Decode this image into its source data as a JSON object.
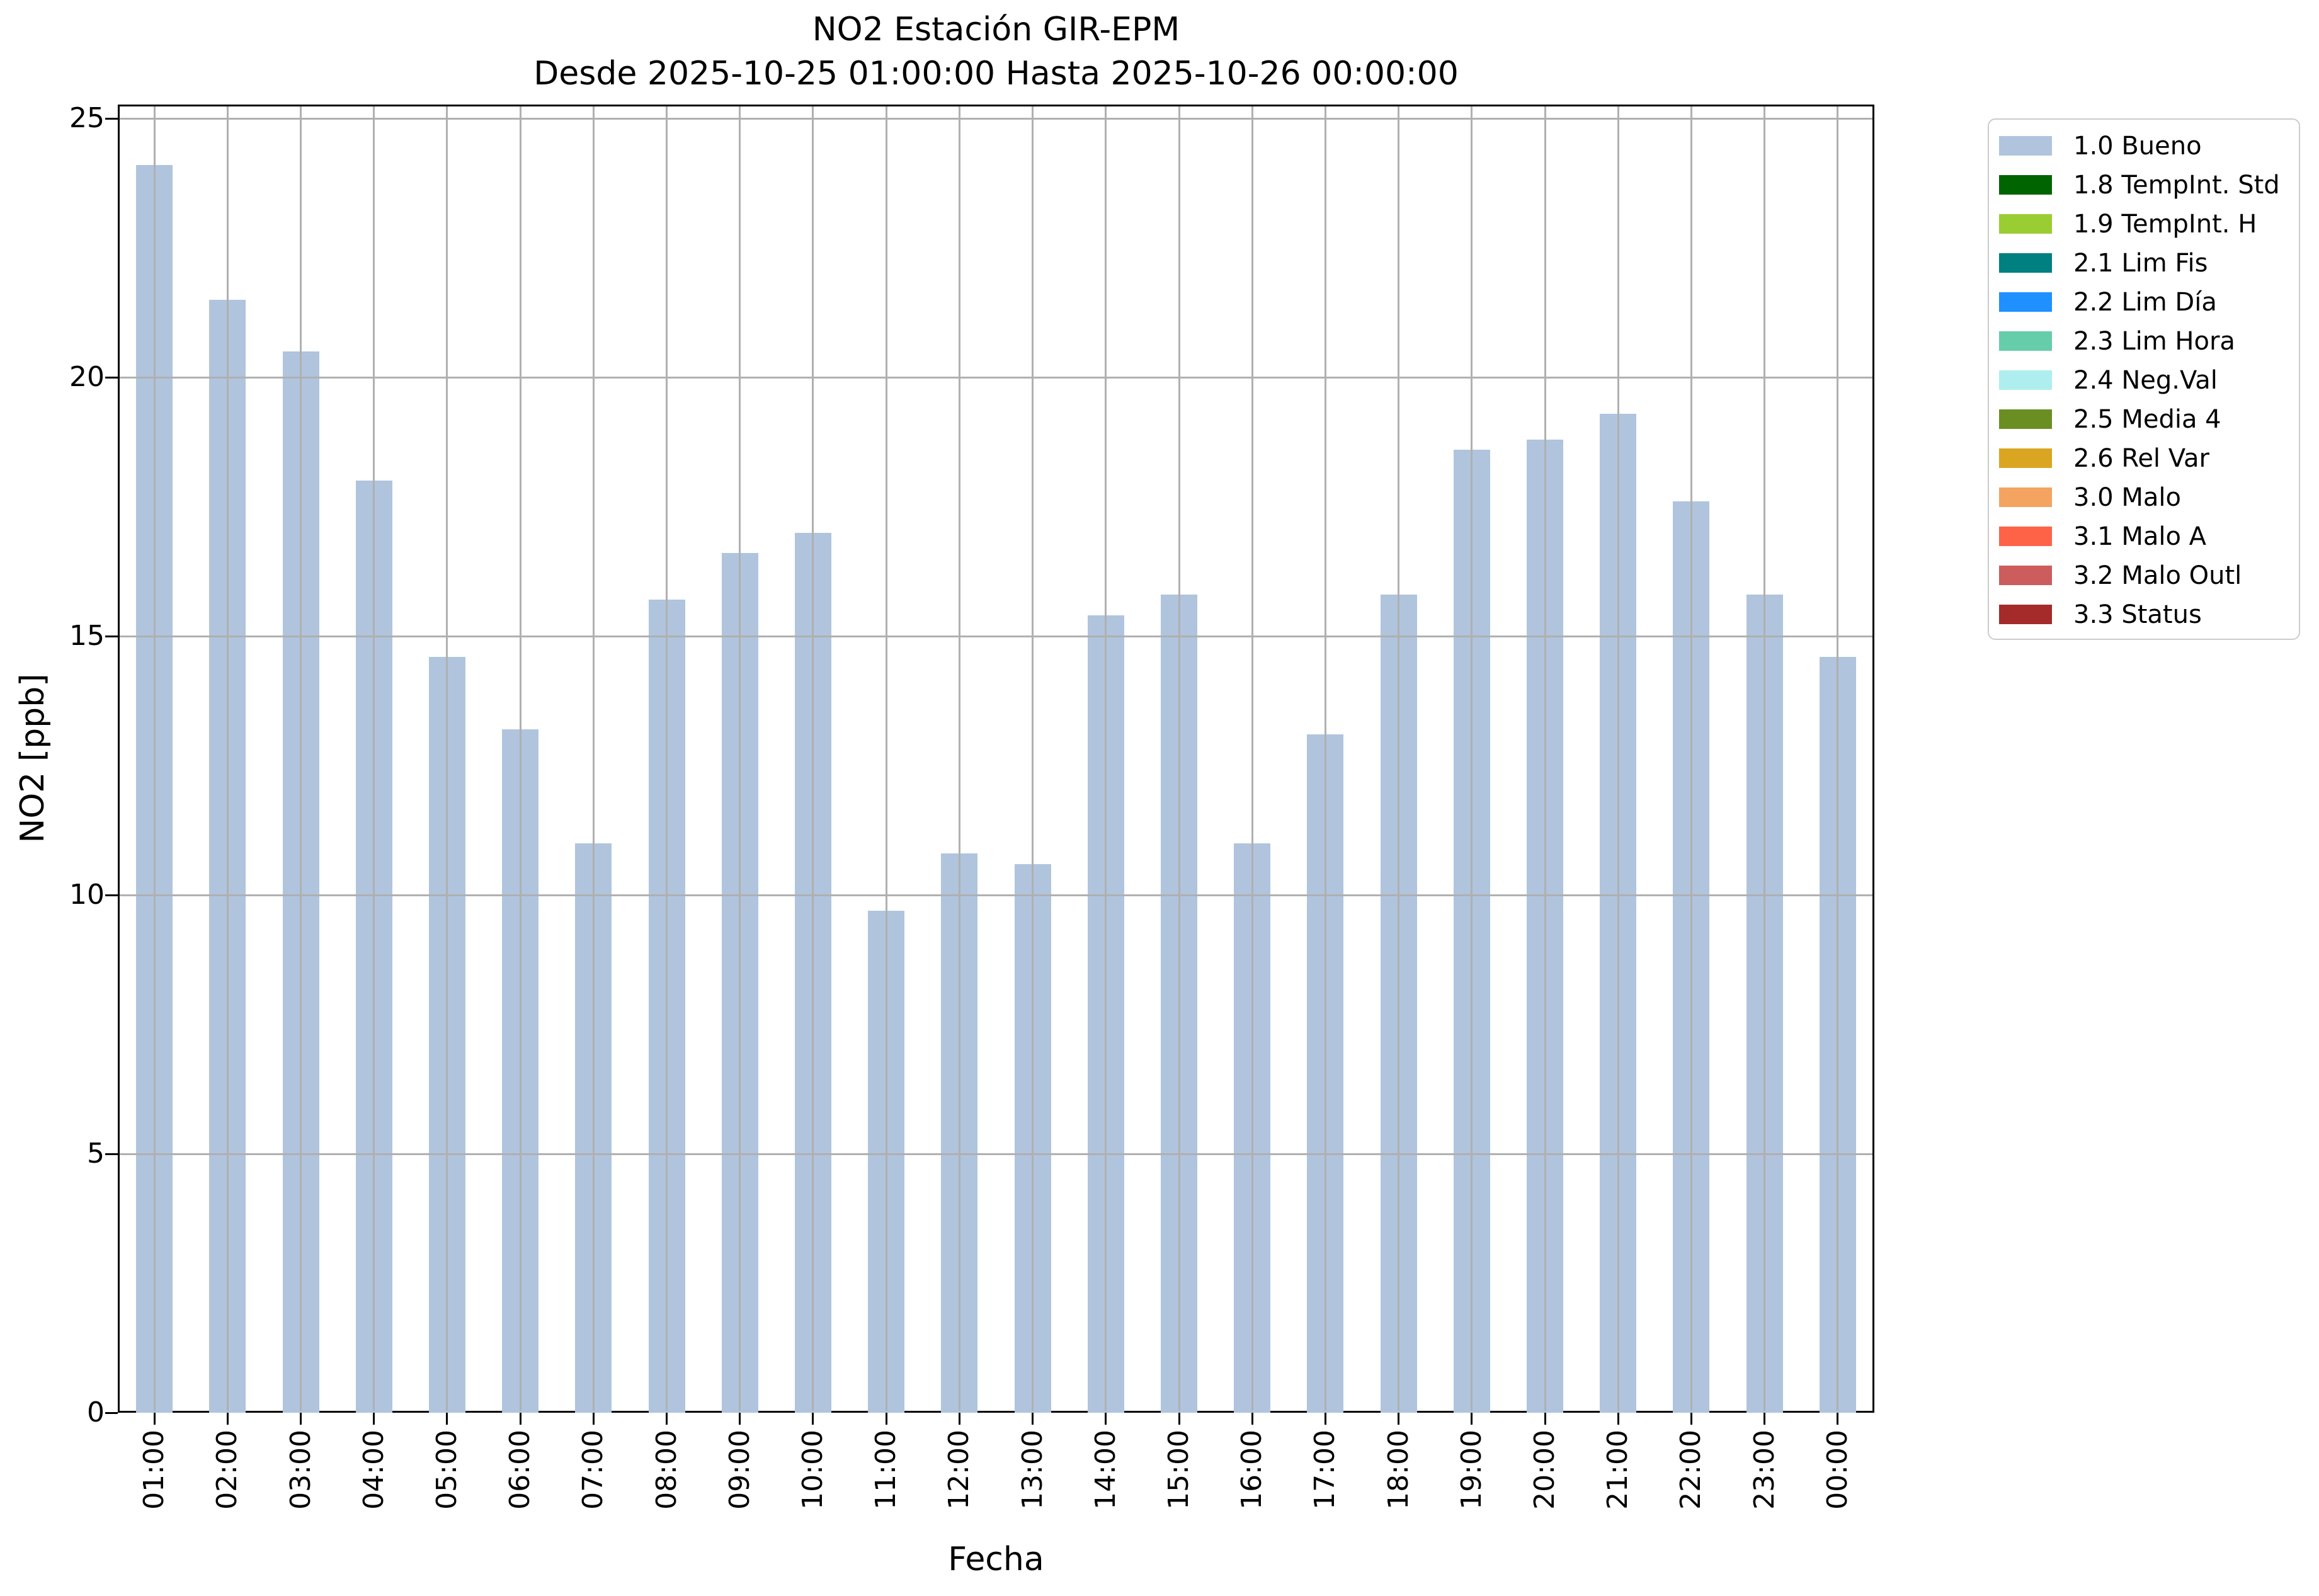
{
  "title": {
    "line1": "NO2 Estación GIR-EPM",
    "line2": "Desde 2025-10-25 01:00:00 Hasta 2025-10-26 00:00:00"
  },
  "chart_data": {
    "type": "bar",
    "title": "NO2 Estación GIR-EPM",
    "subtitle": "Desde 2025-10-25 01:00:00 Hasta 2025-10-26 00:00:00",
    "xlabel": "Fecha",
    "ylabel": "NO2 [ppb]",
    "categories": [
      "01:00",
      "02:00",
      "03:00",
      "04:00",
      "05:00",
      "06:00",
      "07:00",
      "08:00",
      "09:00",
      "10:00",
      "11:00",
      "12:00",
      "13:00",
      "14:00",
      "15:00",
      "16:00",
      "17:00",
      "18:00",
      "19:00",
      "20:00",
      "21:00",
      "22:00",
      "23:00",
      "00:00"
    ],
    "values": [
      24.1,
      21.5,
      20.5,
      18.0,
      14.6,
      13.2,
      11.0,
      15.7,
      16.6,
      17.0,
      9.7,
      10.8,
      10.6,
      15.4,
      15.8,
      11.0,
      13.1,
      15.8,
      18.6,
      18.8,
      19.3,
      17.6,
      15.8,
      14.6
    ],
    "series_name": "1.0 Bueno",
    "bar_color": "#b0c4de",
    "ylim": [
      0,
      25.3
    ],
    "yticks": [
      0,
      5,
      10,
      15,
      20,
      25
    ],
    "grid": true,
    "grid_color": "#b0b0b0",
    "legend_position": "outside-upper-right"
  },
  "legend": {
    "items": [
      {
        "label": "1.0 Bueno",
        "color": "#b0c4de"
      },
      {
        "label": "1.8 TempInt. Std",
        "color": "#006400"
      },
      {
        "label": "1.9 TempInt. H",
        "color": "#9acd32"
      },
      {
        "label": "2.1 Lim Fis",
        "color": "#008080"
      },
      {
        "label": "2.2 Lim Día",
        "color": "#1e90ff"
      },
      {
        "label": "2.3 Lim Hora",
        "color": "#66cdaa"
      },
      {
        "label": "2.4 Neg.Val",
        "color": "#afeeee"
      },
      {
        "label": "2.5 Media 4",
        "color": "#6b8e23"
      },
      {
        "label": "2.6 Rel Var",
        "color": "#daa520"
      },
      {
        "label": "3.0 Malo",
        "color": "#f4a460"
      },
      {
        "label": "3.1 Malo A",
        "color": "#ff6347"
      },
      {
        "label": "3.2 Malo Outl",
        "color": "#cd5c5c"
      },
      {
        "label": "3.3 Status",
        "color": "#a52a2a"
      }
    ]
  },
  "colors": {
    "background": "#ffffff",
    "spine": "#000000",
    "grid": "#b0b0b0",
    "legend_border": "#cccccc",
    "text": "#000000"
  }
}
